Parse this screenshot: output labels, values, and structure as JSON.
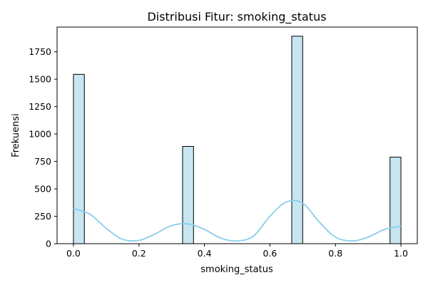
{
  "chart_data": {
    "type": "bar",
    "title": "Distribusi Fitur: smoking_status",
    "xlabel": "smoking_status",
    "ylabel": "Frekuensi",
    "xlim": [
      -0.05,
      1.05
    ],
    "ylim": [
      0,
      1975
    ],
    "xticks": [
      0.0,
      0.2,
      0.4,
      0.6,
      0.8,
      1.0
    ],
    "xtick_labels": [
      "0.0",
      "0.2",
      "0.4",
      "0.6",
      "0.8",
      "1.0"
    ],
    "yticks": [
      0,
      250,
      500,
      750,
      1000,
      1250,
      1500,
      1750
    ],
    "ytick_labels": [
      "0",
      "250",
      "500",
      "750",
      "1000",
      "1250",
      "1500",
      "1750"
    ],
    "grid": false,
    "bars": [
      {
        "x0": 0.0,
        "x1": 0.0333,
        "value": 1544
      },
      {
        "x0": 0.3333,
        "x1": 0.3667,
        "value": 887
      },
      {
        "x0": 0.6667,
        "x1": 0.7,
        "value": 1892
      },
      {
        "x0": 0.9667,
        "x1": 1.0,
        "value": 789
      }
    ],
    "kde": {
      "x": [
        0.0,
        0.05,
        0.1,
        0.15,
        0.2,
        0.25,
        0.3,
        0.35,
        0.4,
        0.45,
        0.5,
        0.55,
        0.6,
        0.65,
        0.7,
        0.75,
        0.8,
        0.85,
        0.9,
        0.95,
        1.0
      ],
      "y": [
        320,
        270,
        140,
        40,
        30,
        90,
        165,
        180,
        130,
        50,
        25,
        70,
        250,
        380,
        370,
        200,
        60,
        25,
        60,
        130,
        160
      ]
    },
    "colors": {
      "bar_fill": "#c6e6f2",
      "bar_edge": "#000000",
      "kde_line": "#87ceeb",
      "axis": "#000000"
    }
  }
}
